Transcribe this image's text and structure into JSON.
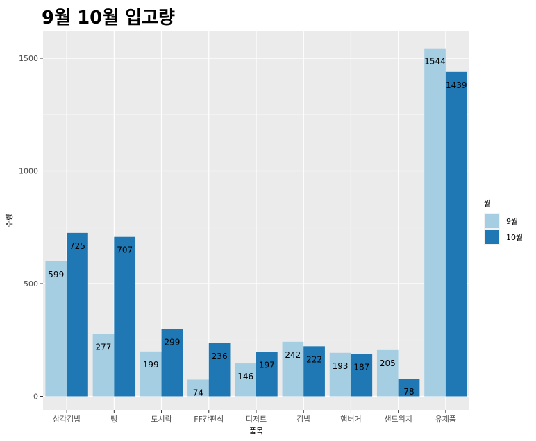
{
  "chart_data": {
    "type": "bar",
    "title": "9월 10월 입고량",
    "xlabel": "품목",
    "ylabel": "수량",
    "categories": [
      "삼각김밥",
      "빵",
      "도시락",
      "FF간편식",
      "디저트",
      "김밥",
      "햄버거",
      "샌드위치",
      "유제품"
    ],
    "series": [
      {
        "name": "9월",
        "color": "#a6cee3",
        "values": [
          599,
          277,
          199,
          74,
          146,
          242,
          193,
          205,
          1544
        ]
      },
      {
        "name": "10월",
        "color": "#1f78b4",
        "values": [
          725,
          707,
          299,
          236,
          197,
          222,
          187,
          78,
          1439
        ]
      }
    ],
    "ylim": [
      -60,
      1620
    ],
    "yticks": [
      0,
      500,
      1000,
      1500
    ],
    "grid": true,
    "legend_title": "월",
    "legend_position": "right"
  }
}
